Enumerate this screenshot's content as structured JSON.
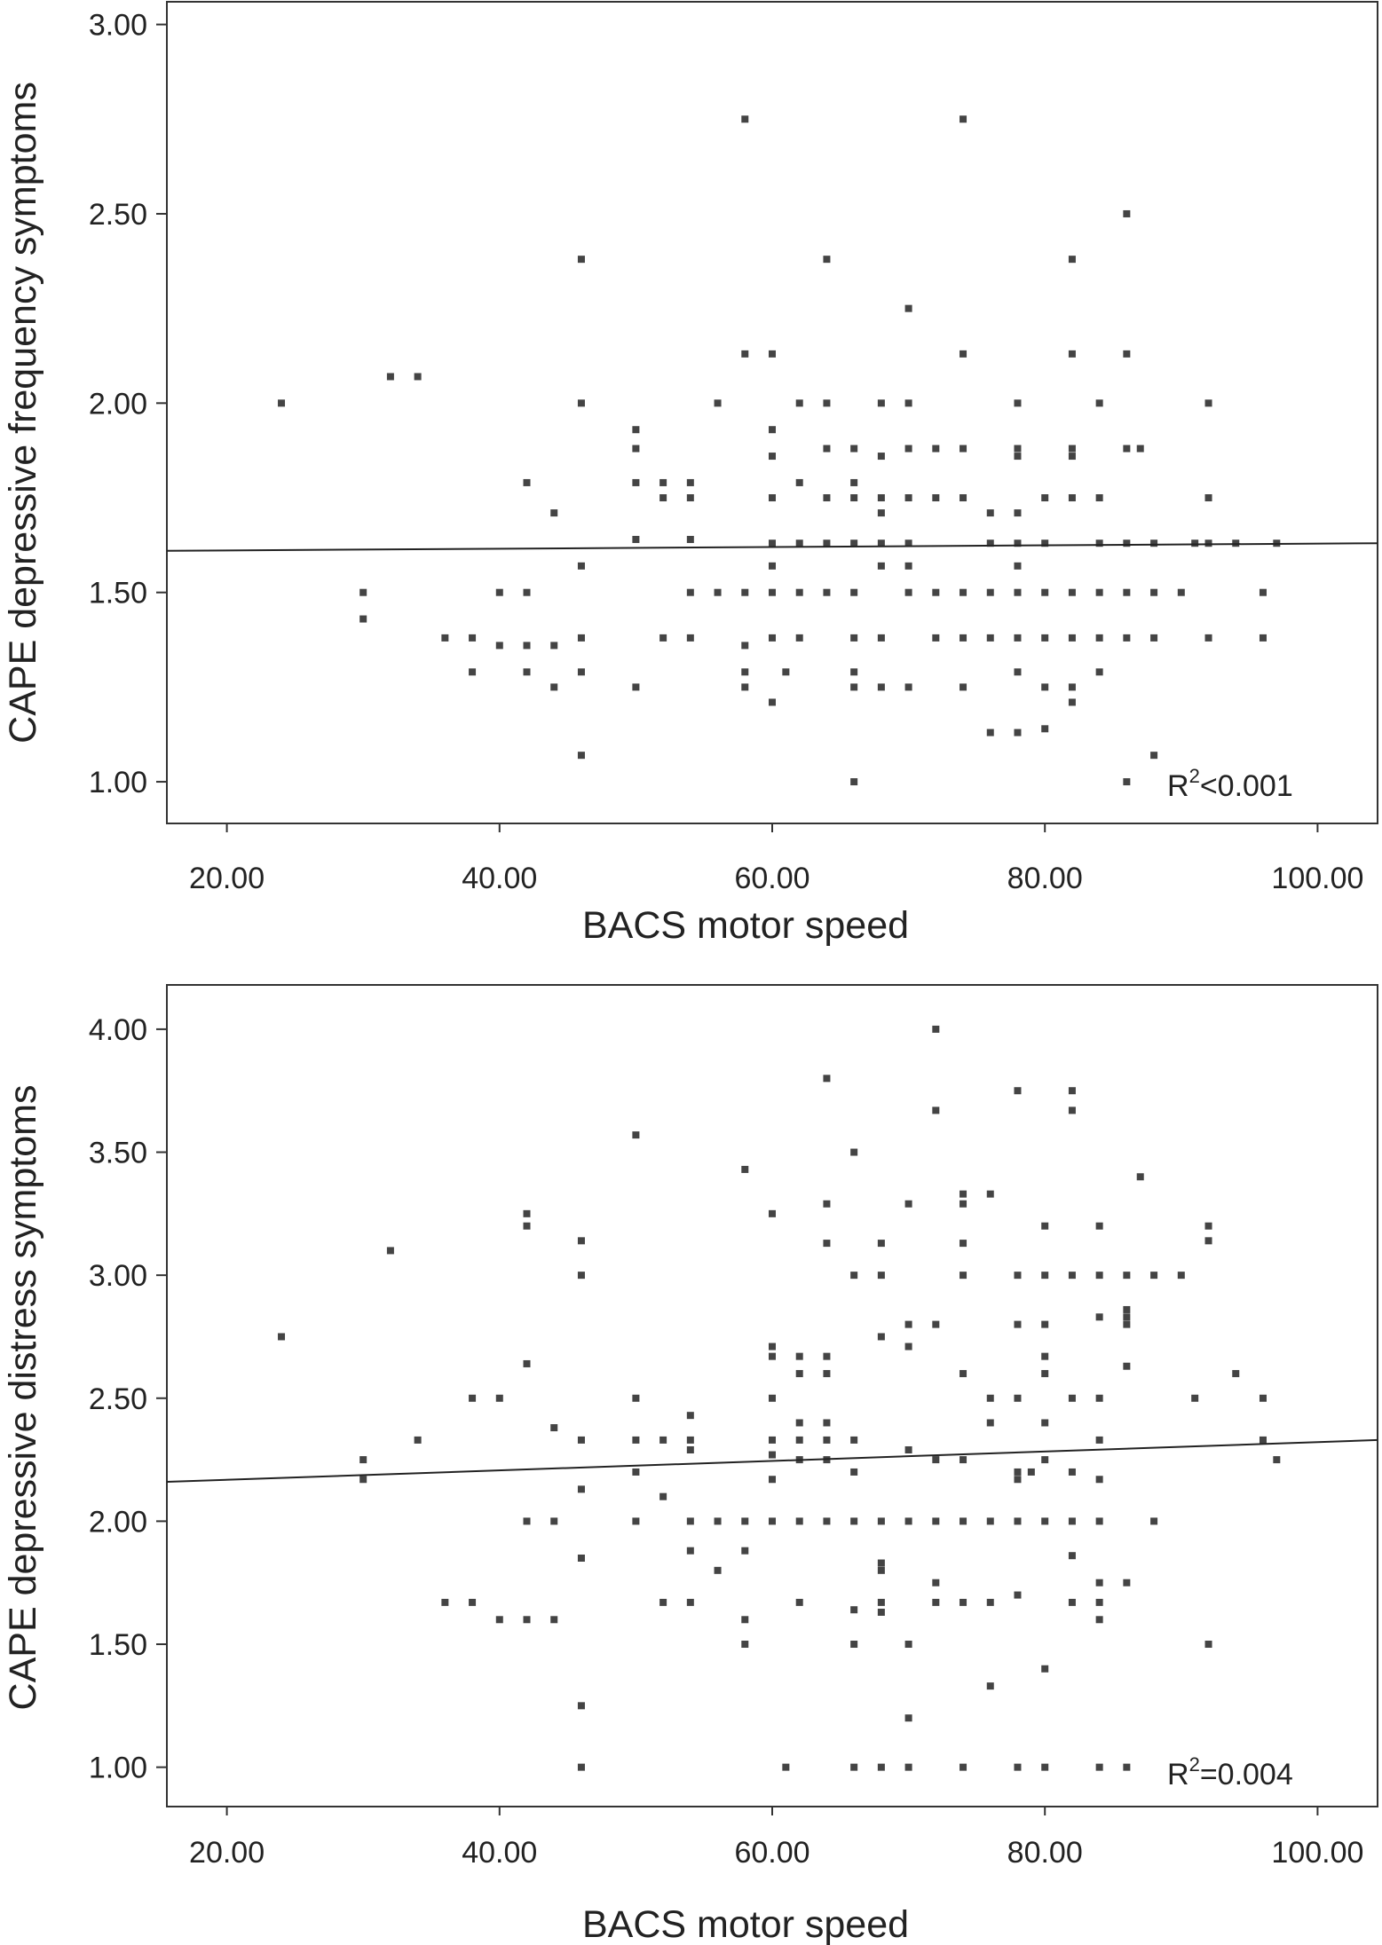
{
  "chart_data": [
    {
      "type": "scatter",
      "xlabel": "BACS motor speed",
      "ylabel": "CAPE depressive frequency symptoms",
      "xlim": [
        15.6,
        104.4
      ],
      "ylim": [
        0.89,
        3.06
      ],
      "xticks": [
        "20.00",
        "40.00",
        "60.00",
        "80.00",
        "100.00"
      ],
      "yticks": [
        "1.00",
        "1.50",
        "2.00",
        "2.50",
        "3.00"
      ],
      "annotation": {
        "base": "R",
        "sup": "2",
        "rest": "<0.001"
      },
      "fit_line": {
        "x": [
          15.6,
          104.4
        ],
        "y": [
          1.61,
          1.63
        ]
      },
      "colors": {
        "points": "#444444",
        "line": "#222222"
      },
      "points": [
        [
          24,
          2.0
        ],
        [
          30,
          1.5
        ],
        [
          30,
          1.43
        ],
        [
          32,
          2.07
        ],
        [
          34,
          2.07
        ],
        [
          36,
          1.38
        ],
        [
          38,
          1.38
        ],
        [
          38,
          1.29
        ],
        [
          40,
          1.5
        ],
        [
          40,
          1.36
        ],
        [
          42,
          1.79
        ],
        [
          42,
          1.5
        ],
        [
          42,
          1.36
        ],
        [
          42,
          1.29
        ],
        [
          44,
          1.71
        ],
        [
          44,
          1.36
        ],
        [
          44,
          1.25
        ],
        [
          46,
          2.38
        ],
        [
          46,
          2.0
        ],
        [
          46,
          1.57
        ],
        [
          46,
          1.38
        ],
        [
          46,
          1.29
        ],
        [
          46,
          1.07
        ],
        [
          50,
          1.93
        ],
        [
          50,
          1.88
        ],
        [
          50,
          1.79
        ],
        [
          50,
          1.64
        ],
        [
          50,
          1.25
        ],
        [
          52,
          1.79
        ],
        [
          52,
          1.75
        ],
        [
          52,
          1.38
        ],
        [
          54,
          1.79
        ],
        [
          54,
          1.75
        ],
        [
          54,
          1.64
        ],
        [
          54,
          1.5
        ],
        [
          54,
          1.38
        ],
        [
          56,
          2.0
        ],
        [
          56,
          1.5
        ],
        [
          58,
          2.75
        ],
        [
          58,
          2.13
        ],
        [
          58,
          1.5
        ],
        [
          58,
          1.36
        ],
        [
          58,
          1.29
        ],
        [
          58,
          1.25
        ],
        [
          60,
          2.13
        ],
        [
          60,
          1.93
        ],
        [
          60,
          1.86
        ],
        [
          60,
          1.75
        ],
        [
          60,
          1.63
        ],
        [
          60,
          1.57
        ],
        [
          60,
          1.5
        ],
        [
          60,
          1.38
        ],
        [
          60,
          1.21
        ],
        [
          61,
          1.29
        ],
        [
          62,
          2.0
        ],
        [
          62,
          1.79
        ],
        [
          62,
          1.63
        ],
        [
          62,
          1.5
        ],
        [
          62,
          1.38
        ],
        [
          64,
          2.38
        ],
        [
          64,
          2.0
        ],
        [
          64,
          1.88
        ],
        [
          64,
          1.75
        ],
        [
          64,
          1.63
        ],
        [
          64,
          1.5
        ],
        [
          66,
          1.88
        ],
        [
          66,
          1.79
        ],
        [
          66,
          1.75
        ],
        [
          66,
          1.63
        ],
        [
          66,
          1.5
        ],
        [
          66,
          1.38
        ],
        [
          66,
          1.29
        ],
        [
          66,
          1.25
        ],
        [
          66,
          1.0
        ],
        [
          68,
          2.0
        ],
        [
          68,
          1.86
        ],
        [
          68,
          1.75
        ],
        [
          68,
          1.71
        ],
        [
          68,
          1.63
        ],
        [
          68,
          1.57
        ],
        [
          68,
          1.38
        ],
        [
          68,
          1.25
        ],
        [
          70,
          2.25
        ],
        [
          70,
          2.0
        ],
        [
          70,
          1.88
        ],
        [
          70,
          1.75
        ],
        [
          70,
          1.63
        ],
        [
          70,
          1.57
        ],
        [
          70,
          1.5
        ],
        [
          70,
          1.25
        ],
        [
          72,
          1.88
        ],
        [
          72,
          1.75
        ],
        [
          72,
          1.5
        ],
        [
          72,
          1.38
        ],
        [
          74,
          2.75
        ],
        [
          74,
          2.13
        ],
        [
          74,
          1.88
        ],
        [
          74,
          1.75
        ],
        [
          74,
          1.5
        ],
        [
          74,
          1.38
        ],
        [
          74,
          1.25
        ],
        [
          76,
          1.71
        ],
        [
          76,
          1.63
        ],
        [
          76,
          1.5
        ],
        [
          76,
          1.38
        ],
        [
          76,
          1.13
        ],
        [
          78,
          2.0
        ],
        [
          78,
          1.88
        ],
        [
          78,
          1.86
        ],
        [
          78,
          1.71
        ],
        [
          78,
          1.63
        ],
        [
          78,
          1.57
        ],
        [
          78,
          1.5
        ],
        [
          78,
          1.38
        ],
        [
          78,
          1.29
        ],
        [
          78,
          1.13
        ],
        [
          80,
          1.75
        ],
        [
          80,
          1.63
        ],
        [
          80,
          1.5
        ],
        [
          80,
          1.38
        ],
        [
          80,
          1.25
        ],
        [
          80,
          1.14
        ],
        [
          82,
          2.38
        ],
        [
          82,
          2.13
        ],
        [
          82,
          1.88
        ],
        [
          82,
          1.86
        ],
        [
          82,
          1.75
        ],
        [
          82,
          1.5
        ],
        [
          82,
          1.38
        ],
        [
          82,
          1.25
        ],
        [
          82,
          1.21
        ],
        [
          84,
          2.0
        ],
        [
          84,
          1.75
        ],
        [
          84,
          1.63
        ],
        [
          84,
          1.5
        ],
        [
          84,
          1.38
        ],
        [
          84,
          1.29
        ],
        [
          86,
          2.5
        ],
        [
          86,
          2.13
        ],
        [
          86,
          1.88
        ],
        [
          86,
          1.63
        ],
        [
          86,
          1.5
        ],
        [
          86,
          1.38
        ],
        [
          86,
          1.0
        ],
        [
          87,
          1.88
        ],
        [
          88,
          1.63
        ],
        [
          88,
          1.5
        ],
        [
          88,
          1.38
        ],
        [
          88,
          1.07
        ],
        [
          90,
          1.5
        ],
        [
          91,
          1.63
        ],
        [
          92,
          2.0
        ],
        [
          92,
          1.75
        ],
        [
          92,
          1.63
        ],
        [
          92,
          1.38
        ],
        [
          94,
          1.63
        ],
        [
          96,
          1.5
        ],
        [
          96,
          1.38
        ],
        [
          97,
          1.63
        ]
      ]
    },
    {
      "type": "scatter",
      "xlabel": "BACS motor speed",
      "ylabel": "CAPE depressive distress symptoms",
      "xlim": [
        15.6,
        104.4
      ],
      "ylim": [
        0.84,
        4.18
      ],
      "xticks": [
        "20.00",
        "40.00",
        "60.00",
        "80.00",
        "100.00"
      ],
      "yticks": [
        "1.00",
        "1.50",
        "2.00",
        "2.50",
        "3.00",
        "3.50",
        "4.00"
      ],
      "annotation": {
        "base": "R",
        "sup": "2",
        "rest": "=0.004"
      },
      "fit_line": {
        "x": [
          15.6,
          104.4
        ],
        "y": [
          2.16,
          2.33
        ]
      },
      "colors": {
        "points": "#444444",
        "line": "#222222"
      },
      "points": [
        [
          24,
          2.75
        ],
        [
          30,
          2.25
        ],
        [
          30,
          2.17
        ],
        [
          32,
          3.1
        ],
        [
          34,
          2.33
        ],
        [
          36,
          1.67
        ],
        [
          38,
          2.5
        ],
        [
          38,
          1.67
        ],
        [
          40,
          2.5
        ],
        [
          40,
          1.6
        ],
        [
          42,
          3.25
        ],
        [
          42,
          3.2
        ],
        [
          42,
          2.64
        ],
        [
          42,
          2.0
        ],
        [
          42,
          1.6
        ],
        [
          44,
          2.38
        ],
        [
          44,
          2.0
        ],
        [
          44,
          1.6
        ],
        [
          46,
          3.14
        ],
        [
          46,
          3.0
        ],
        [
          46,
          2.33
        ],
        [
          46,
          2.13
        ],
        [
          46,
          1.85
        ],
        [
          46,
          1.25
        ],
        [
          46,
          1.0
        ],
        [
          50,
          3.57
        ],
        [
          50,
          2.5
        ],
        [
          50,
          2.33
        ],
        [
          50,
          2.2
        ],
        [
          50,
          2.0
        ],
        [
          52,
          2.33
        ],
        [
          52,
          2.1
        ],
        [
          52,
          1.67
        ],
        [
          54,
          2.43
        ],
        [
          54,
          2.33
        ],
        [
          54,
          2.29
        ],
        [
          54,
          2.0
        ],
        [
          54,
          1.88
        ],
        [
          54,
          1.67
        ],
        [
          56,
          2.0
        ],
        [
          56,
          1.8
        ],
        [
          58,
          3.43
        ],
        [
          58,
          2.0
        ],
        [
          58,
          1.88
        ],
        [
          58,
          1.6
        ],
        [
          58,
          1.5
        ],
        [
          60,
          3.25
        ],
        [
          60,
          2.71
        ],
        [
          60,
          2.67
        ],
        [
          60,
          2.5
        ],
        [
          60,
          2.33
        ],
        [
          60,
          2.27
        ],
        [
          60,
          2.17
        ],
        [
          60,
          2.0
        ],
        [
          61,
          1.0
        ],
        [
          62,
          2.67
        ],
        [
          62,
          2.6
        ],
        [
          62,
          2.4
        ],
        [
          62,
          2.33
        ],
        [
          62,
          2.25
        ],
        [
          62,
          2.0
        ],
        [
          62,
          1.67
        ],
        [
          64,
          3.8
        ],
        [
          64,
          3.29
        ],
        [
          64,
          3.13
        ],
        [
          64,
          2.67
        ],
        [
          64,
          2.6
        ],
        [
          64,
          2.4
        ],
        [
          64,
          2.33
        ],
        [
          64,
          2.25
        ],
        [
          64,
          2.0
        ],
        [
          66,
          3.5
        ],
        [
          66,
          3.0
        ],
        [
          66,
          2.33
        ],
        [
          66,
          2.2
        ],
        [
          66,
          2.0
        ],
        [
          66,
          1.64
        ],
        [
          66,
          1.5
        ],
        [
          66,
          1.0
        ],
        [
          68,
          3.13
        ],
        [
          68,
          3.0
        ],
        [
          68,
          2.75
        ],
        [
          68,
          2.0
        ],
        [
          68,
          1.83
        ],
        [
          68,
          1.8
        ],
        [
          68,
          1.67
        ],
        [
          68,
          1.63
        ],
        [
          68,
          1.0
        ],
        [
          70,
          3.29
        ],
        [
          70,
          2.8
        ],
        [
          70,
          2.71
        ],
        [
          70,
          2.29
        ],
        [
          70,
          2.0
        ],
        [
          70,
          1.5
        ],
        [
          70,
          1.2
        ],
        [
          70,
          1.0
        ],
        [
          72,
          4.0
        ],
        [
          72,
          3.67
        ],
        [
          72,
          2.8
        ],
        [
          72,
          2.25
        ],
        [
          72,
          2.0
        ],
        [
          72,
          1.75
        ],
        [
          72,
          1.67
        ],
        [
          74,
          3.33
        ],
        [
          74,
          3.29
        ],
        [
          74,
          3.13
        ],
        [
          74,
          3.0
        ],
        [
          74,
          2.6
        ],
        [
          74,
          2.25
        ],
        [
          74,
          2.0
        ],
        [
          74,
          1.67
        ],
        [
          74,
          1.0
        ],
        [
          76,
          3.33
        ],
        [
          76,
          2.5
        ],
        [
          76,
          2.4
        ],
        [
          76,
          2.0
        ],
        [
          76,
          1.67
        ],
        [
          76,
          1.33
        ],
        [
          78,
          3.75
        ],
        [
          78,
          3.0
        ],
        [
          78,
          2.8
        ],
        [
          78,
          2.5
        ],
        [
          78,
          2.2
        ],
        [
          78,
          2.17
        ],
        [
          78,
          2.0
        ],
        [
          78,
          1.7
        ],
        [
          78,
          1.0
        ],
        [
          79,
          2.2
        ],
        [
          80,
          3.2
        ],
        [
          80,
          3.0
        ],
        [
          80,
          2.8
        ],
        [
          80,
          2.67
        ],
        [
          80,
          2.6
        ],
        [
          80,
          2.4
        ],
        [
          80,
          2.25
        ],
        [
          80,
          2.0
        ],
        [
          80,
          1.4
        ],
        [
          80,
          1.0
        ],
        [
          82,
          3.75
        ],
        [
          82,
          3.67
        ],
        [
          82,
          3.0
        ],
        [
          82,
          2.5
        ],
        [
          82,
          2.2
        ],
        [
          82,
          2.0
        ],
        [
          82,
          1.86
        ],
        [
          82,
          1.67
        ],
        [
          84,
          3.2
        ],
        [
          84,
          3.0
        ],
        [
          84,
          2.83
        ],
        [
          84,
          2.5
        ],
        [
          84,
          2.33
        ],
        [
          84,
          2.17
        ],
        [
          84,
          2.0
        ],
        [
          84,
          1.75
        ],
        [
          84,
          1.67
        ],
        [
          84,
          1.6
        ],
        [
          84,
          1.0
        ],
        [
          86,
          3.0
        ],
        [
          86,
          2.86
        ],
        [
          86,
          2.83
        ],
        [
          86,
          2.8
        ],
        [
          86,
          2.63
        ],
        [
          86,
          1.75
        ],
        [
          86,
          1.0
        ],
        [
          87,
          3.4
        ],
        [
          88,
          3.0
        ],
        [
          88,
          2.0
        ],
        [
          90,
          3.0
        ],
        [
          91,
          2.5
        ],
        [
          92,
          3.2
        ],
        [
          92,
          3.14
        ],
        [
          92,
          1.5
        ],
        [
          94,
          2.6
        ],
        [
          96,
          2.5
        ],
        [
          96,
          2.33
        ],
        [
          97,
          2.25
        ]
      ]
    }
  ]
}
